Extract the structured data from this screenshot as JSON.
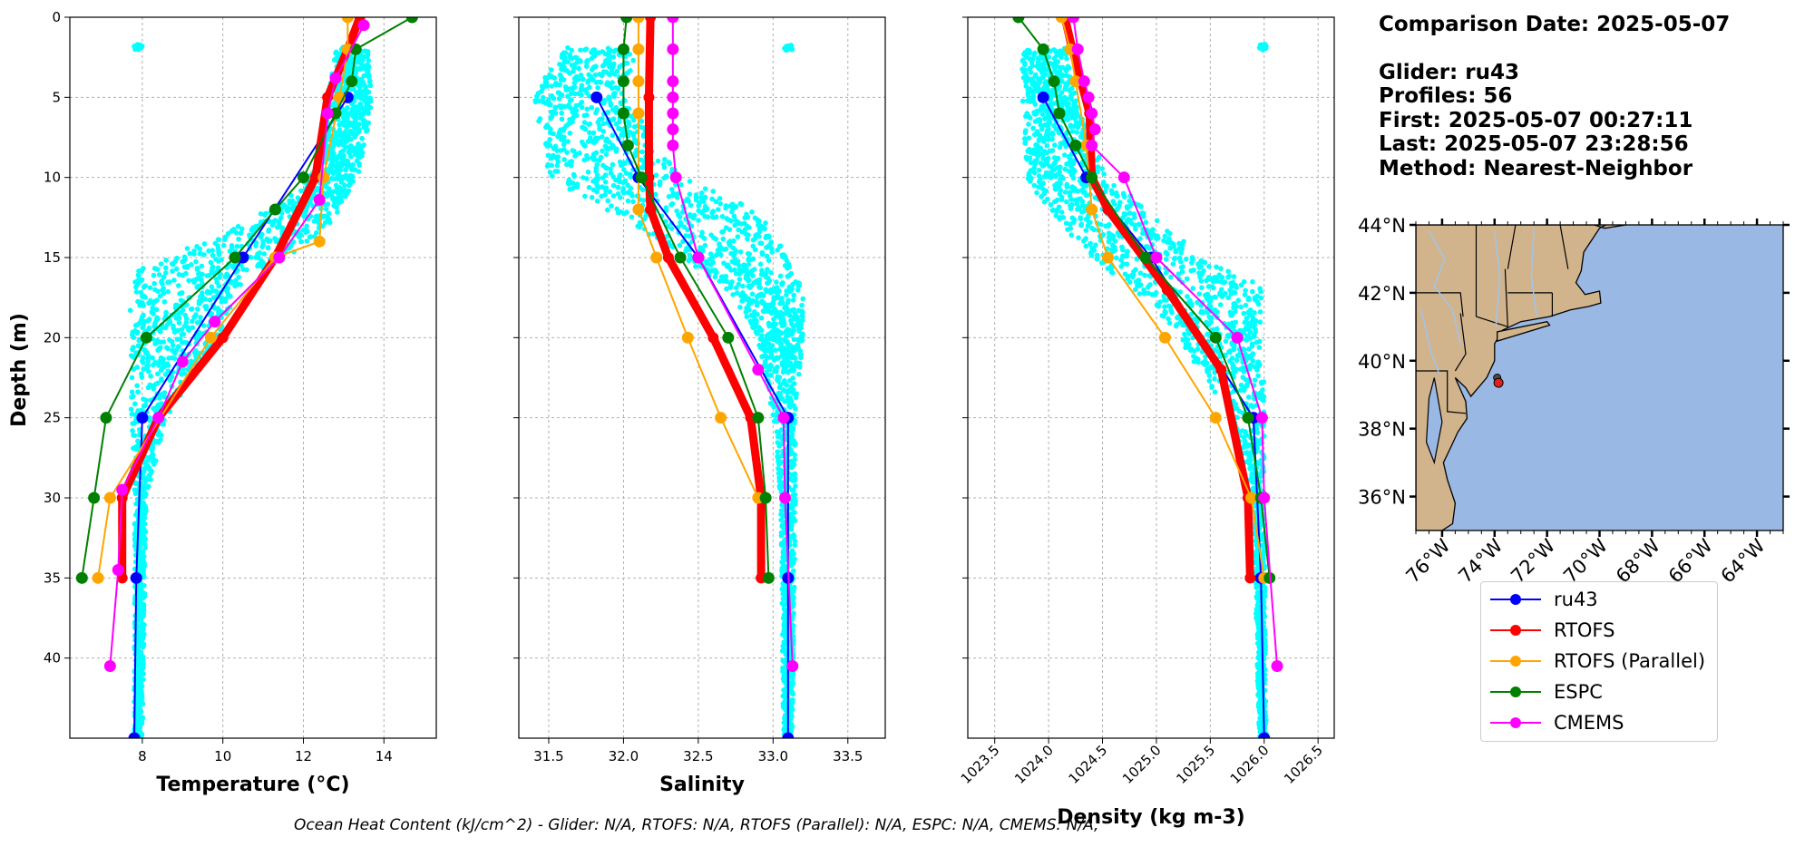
{
  "info": {
    "date_line": "Comparison Date: 2025-05-07",
    "glider_line": "Glider: ru43",
    "profiles_line": "Profiles: 56",
    "first_line": "First: 2025-05-07 00:27:11",
    "last_line": "Last: 2025-05-07 23:28:56",
    "method_line": "Method: Nearest-Neighbor"
  },
  "footer": "Ocean Heat Content (kJ/cm^2) - Glider: N/A,  RTOFS: N/A,  RTOFS (Parallel): N/A,  ESPC: N/A,  CMEMS: N/A,",
  "colors": {
    "ru43": "#0000ff",
    "RTOFS": "#ff0000",
    "RTOFS (Parallel)": "#ffa500",
    "ESPC": "#008000",
    "CMEMS": "#ff00ff",
    "glider_scatter": "#00ffff",
    "land": "#d2b48c",
    "ocean": "#99b8e3",
    "rivers": "#a0c4f0"
  },
  "legend": [
    {
      "label": "ru43",
      "color": "#0000ff"
    },
    {
      "label": "RTOFS",
      "color": "#ff0000"
    },
    {
      "label": "RTOFS (Parallel)",
      "color": "#ffa500"
    },
    {
      "label": "ESPC",
      "color": "#008000"
    },
    {
      "label": "CMEMS",
      "color": "#ff00ff"
    }
  ],
  "chart_data": [
    {
      "type": "line",
      "xlabel": "Temperature (°C)",
      "ylabel": "Depth (m)",
      "xlim": [
        6.2,
        15.3
      ],
      "ylim": [
        45,
        0
      ],
      "xticks": [
        8,
        10,
        12,
        14
      ],
      "yticks": [
        0,
        5,
        10,
        15,
        20,
        25,
        30,
        35,
        40
      ],
      "grid": true,
      "glider_range": [
        [
          2,
          12.8,
          13.6
        ],
        [
          5,
          12.6,
          13.7
        ],
        [
          9,
          12.5,
          13.5
        ],
        [
          11,
          11.8,
          13.1
        ],
        [
          13,
          10.5,
          12.6
        ],
        [
          15,
          8.6,
          11.6
        ],
        [
          16,
          7.8,
          10.6
        ],
        [
          18,
          7.7,
          10.2
        ],
        [
          20,
          7.7,
          9.9
        ],
        [
          22,
          7.7,
          9.4
        ],
        [
          25,
          7.7,
          8.6
        ],
        [
          30,
          7.8,
          8.1
        ],
        [
          45,
          7.8,
          8.0
        ]
      ],
      "series": [
        {
          "name": "ru43",
          "x": [
            13.1,
            10.5,
            8.0,
            7.85,
            7.8
          ],
          "y": [
            5,
            15,
            25,
            35,
            45
          ],
          "width": 2
        },
        {
          "name": "RTOFS",
          "x": [
            13.4,
            13.1,
            12.6,
            12.3,
            11.3,
            10.0,
            8.4,
            7.5,
            7.5
          ],
          "y": [
            0,
            2,
            5,
            10,
            15,
            20,
            25,
            30,
            35
          ],
          "width": 9
        },
        {
          "name": "RTOFS (Parallel)",
          "x": [
            13.1,
            13.1,
            12.9,
            12.5,
            12.4,
            11.3,
            9.7,
            7.2,
            6.9
          ],
          "y": [
            0,
            2,
            5,
            10,
            14,
            15,
            20,
            30,
            35
          ],
          "width": 2
        },
        {
          "name": "ESPC",
          "x": [
            14.7,
            13.3,
            13.2,
            12.8,
            12.0,
            11.3,
            10.3,
            8.1,
            7.1,
            6.8,
            6.5
          ],
          "y": [
            0,
            2,
            4,
            6,
            10,
            12,
            15,
            20,
            25,
            30,
            35
          ],
          "width": 2
        },
        {
          "name": "CMEMS",
          "x": [
            13.5,
            12.8,
            12.6,
            12.4,
            11.4,
            9.8,
            9.0,
            8.4,
            7.5,
            7.4,
            7.2
          ],
          "y": [
            0.5,
            3.8,
            6,
            11.4,
            15,
            19,
            21.5,
            25,
            29.5,
            34.5,
            40.5
          ],
          "width": 2
        }
      ]
    },
    {
      "type": "line",
      "xlabel": "Salinity",
      "xlim": [
        31.3,
        33.75
      ],
      "ylim": [
        45,
        0
      ],
      "xticks": [
        31.5,
        32.0,
        32.5,
        33.0,
        33.5
      ],
      "yticks": [
        0,
        5,
        10,
        15,
        20,
        25,
        30,
        35,
        40
      ],
      "grid": true,
      "glider_range": [
        [
          2,
          31.6,
          32.1
        ],
        [
          5,
          31.4,
          32.0
        ],
        [
          10,
          31.5,
          32.4
        ],
        [
          12,
          31.9,
          32.9
        ],
        [
          15,
          32.4,
          33.1
        ],
        [
          17,
          32.7,
          33.2
        ],
        [
          20,
          32.9,
          33.2
        ],
        [
          25,
          33.0,
          33.15
        ],
        [
          30,
          33.05,
          33.15
        ],
        [
          45,
          33.07,
          33.13
        ]
      ],
      "series": [
        {
          "name": "ru43",
          "x": [
            31.82,
            32.1,
            32.5,
            33.1,
            33.1,
            33.1
          ],
          "y": [
            5,
            10,
            15,
            25,
            35,
            45
          ],
          "width": 2
        },
        {
          "name": "RTOFS",
          "x": [
            32.18,
            32.17,
            32.17,
            32.18,
            32.3,
            32.6,
            32.85,
            32.92,
            32.92
          ],
          "y": [
            0,
            5,
            10,
            12,
            15,
            20,
            25,
            30,
            35
          ],
          "width": 9
        },
        {
          "name": "RTOFS (Parallel)",
          "x": [
            32.1,
            32.1,
            32.1,
            32.1,
            32.1,
            32.22,
            32.43,
            32.65,
            32.9
          ],
          "y": [
            0,
            2,
            4,
            6,
            12,
            15,
            20,
            25,
            30
          ],
          "width": 2
        },
        {
          "name": "ESPC",
          "x": [
            32.02,
            32.0,
            32.0,
            32.0,
            32.03,
            32.12,
            32.38,
            32.7,
            32.9,
            32.95,
            32.97
          ],
          "y": [
            0,
            2,
            4,
            6,
            8,
            10,
            15,
            20,
            25,
            30,
            35
          ],
          "width": 2
        },
        {
          "name": "CMEMS",
          "x": [
            32.33,
            32.33,
            32.33,
            32.33,
            32.33,
            32.33,
            32.33,
            32.35,
            32.5,
            32.9,
            33.07,
            33.08,
            33.13
          ],
          "y": [
            0,
            2,
            4,
            5,
            6,
            7,
            8,
            10,
            15,
            22,
            25,
            30,
            40.5
          ],
          "width": 2
        }
      ]
    },
    {
      "type": "line",
      "xlabel": "Density (kg m-3)",
      "xlim": [
        1023.25,
        1026.65
      ],
      "ylim": [
        45,
        0
      ],
      "xticks": [
        1023.5,
        1024.0,
        1024.5,
        1025.0,
        1025.5,
        1026.0,
        1026.5
      ],
      "yticks": [
        0,
        5,
        10,
        15,
        20,
        25,
        30,
        35,
        40
      ],
      "grid": true,
      "glider_range": [
        [
          2,
          1023.75,
          1024.15
        ],
        [
          5,
          1023.75,
          1024.25
        ],
        [
          10,
          1023.8,
          1024.55
        ],
        [
          12,
          1024.0,
          1024.9
        ],
        [
          15,
          1024.4,
          1025.4
        ],
        [
          17,
          1024.8,
          1026.0
        ],
        [
          20,
          1025.2,
          1026.0
        ],
        [
          25,
          1025.7,
          1026.0
        ],
        [
          30,
          1025.9,
          1026.0
        ],
        [
          45,
          1025.95,
          1026.02
        ]
      ],
      "series": [
        {
          "name": "ru43",
          "x": [
            1023.95,
            1024.35,
            1024.95,
            1025.9,
            1025.97,
            1026.0
          ],
          "y": [
            5,
            10,
            15,
            25,
            35,
            45
          ],
          "width": 2
        },
        {
          "name": "RTOFS",
          "x": [
            1024.15,
            1024.22,
            1024.3,
            1024.38,
            1024.4,
            1024.55,
            1025.1,
            1025.6,
            1025.85,
            1025.87
          ],
          "y": [
            0,
            2,
            4,
            6,
            10,
            12,
            17,
            22,
            30,
            35
          ],
          "width": 9
        },
        {
          "name": "RTOFS (Parallel)",
          "x": [
            1024.12,
            1024.2,
            1024.25,
            1024.35,
            1024.4,
            1024.55,
            1025.08,
            1025.55,
            1025.88,
            1026.0
          ],
          "y": [
            0,
            2,
            4,
            8,
            12,
            15,
            20,
            25,
            30,
            35
          ],
          "width": 2
        },
        {
          "name": "ESPC",
          "x": [
            1023.72,
            1023.95,
            1024.05,
            1024.1,
            1024.25,
            1024.4,
            1024.9,
            1025.55,
            1025.85,
            1025.97,
            1026.05
          ],
          "y": [
            0,
            2,
            4,
            6,
            8,
            10,
            15,
            20,
            25,
            30,
            35
          ],
          "width": 2
        },
        {
          "name": "CMEMS",
          "x": [
            1024.23,
            1024.27,
            1024.33,
            1024.37,
            1024.4,
            1024.43,
            1024.4,
            1024.7,
            1025.0,
            1025.75,
            1025.98,
            1026.0,
            1026.12
          ],
          "y": [
            0,
            2,
            4,
            5,
            6,
            7,
            8,
            10,
            15,
            20,
            25,
            30,
            40.5
          ],
          "width": 2
        }
      ]
    },
    {
      "type": "map",
      "lon_range": [
        -77,
        -63
      ],
      "lat_range": [
        35,
        44
      ],
      "lon_ticks": [
        "76°W",
        "74°W",
        "72°W",
        "70°W",
        "68°W",
        "66°W",
        "64°W"
      ],
      "lat_ticks": [
        "44°N",
        "42°N",
        "40°N",
        "38°N",
        "36°N"
      ],
      "glider_positions": [
        [
          -73.9,
          39.5
        ],
        [
          -73.85,
          39.35
        ]
      ]
    }
  ]
}
